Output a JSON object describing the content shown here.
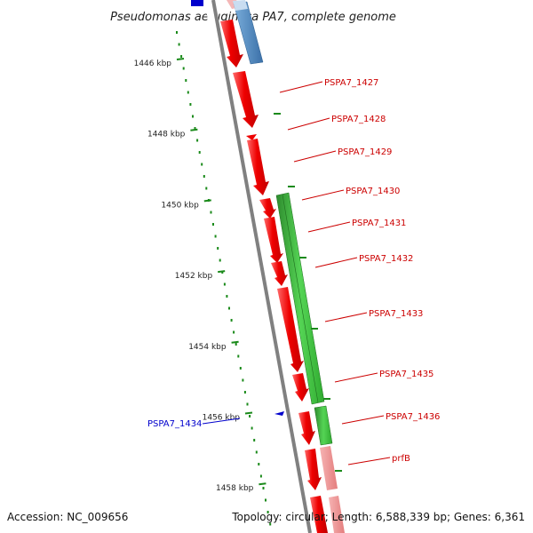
{
  "title": "Pseudomonas aeruginosa PA7, complete genome",
  "accession": "Accession: NC_009656",
  "summary": "Topology: circular; Length: 6,588,339 bp; Genes: 6,361",
  "colors": {
    "backbone": "#808080",
    "forward_gene": "#ee0000",
    "reverse_gene": "#2faa2f",
    "blue_gene": "#3b7fbf",
    "pale_gene": "#f08080",
    "tick": "#1a8a1a",
    "label_red": "#cc0000",
    "label_blue": "#0000cc"
  },
  "scale_ticks": [
    {
      "label": "1446 kbp",
      "kbp": 1446
    },
    {
      "label": "1448 kbp",
      "kbp": 1448
    },
    {
      "label": "1450 kbp",
      "kbp": 1450
    },
    {
      "label": "1452 kbp",
      "kbp": 1452
    },
    {
      "label": "1454 kbp",
      "kbp": 1454
    },
    {
      "label": "1456 kbp",
      "kbp": 1456
    },
    {
      "label": "1458 kbp",
      "kbp": 1458
    }
  ],
  "gene_labels": [
    {
      "name": "PSPA7_1427",
      "color": "red",
      "side": "right"
    },
    {
      "name": "PSPA7_1428",
      "color": "red",
      "side": "right"
    },
    {
      "name": "PSPA7_1429",
      "color": "red",
      "side": "right"
    },
    {
      "name": "PSPA7_1430",
      "color": "red",
      "side": "right"
    },
    {
      "name": "PSPA7_1431",
      "color": "red",
      "side": "right"
    },
    {
      "name": "PSPA7_1432",
      "color": "red",
      "side": "right"
    },
    {
      "name": "PSPA7_1433",
      "color": "red",
      "side": "right"
    },
    {
      "name": "PSPA7_1435",
      "color": "red",
      "side": "right"
    },
    {
      "name": "PSPA7_1436",
      "color": "red",
      "side": "right"
    },
    {
      "name": "prfB",
      "color": "red",
      "side": "right"
    },
    {
      "name": "PSPA7_1434",
      "color": "blue",
      "side": "left"
    }
  ]
}
